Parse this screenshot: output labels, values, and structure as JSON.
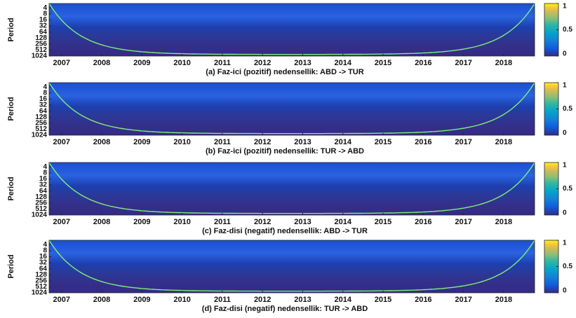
{
  "chart_data": [
    {
      "type": "heatmap",
      "title": "(a)  Faz-ici (pozitif) nedensellik: ABD -> TUR",
      "ylabel": "Period",
      "xlim": [
        2006.69,
        2018.77
      ],
      "xticks": [
        2007,
        2008,
        2009,
        2010,
        2011,
        2012,
        2013,
        2014,
        2015,
        2016,
        2017,
        2018
      ],
      "ylim": [
        2.4,
        1024
      ],
      "yscale": "log",
      "yticks": [
        4,
        8,
        16,
        32,
        64,
        128,
        256,
        512,
        1024
      ],
      "clim": [
        0,
        1
      ],
      "cticks": [
        0,
        0.5,
        1
      ]
    },
    {
      "type": "heatmap",
      "title": "(b) Faz-ici (pozitif) nedensellik: TUR -> ABD",
      "ylabel": "Period",
      "xlim": [
        2006.69,
        2018.77
      ],
      "xticks": [
        2007,
        2008,
        2009,
        2010,
        2011,
        2012,
        2013,
        2014,
        2015,
        2016,
        2017,
        2018
      ],
      "ylim": [
        2.4,
        1024
      ],
      "yscale": "log",
      "yticks": [
        4,
        8,
        16,
        32,
        64,
        128,
        256,
        512,
        1024
      ],
      "clim": [
        0,
        1
      ],
      "cticks": [
        0,
        0.5,
        1
      ]
    },
    {
      "type": "heatmap",
      "title": "(c)  Faz-disi (negatif) nedensellik: ABD -> TUR",
      "ylabel": "Period",
      "xlim": [
        2006.69,
        2018.77
      ],
      "xticks": [
        2007,
        2008,
        2009,
        2010,
        2011,
        2012,
        2013,
        2014,
        2015,
        2016,
        2017,
        2018
      ],
      "ylim": [
        2.4,
        1024
      ],
      "yscale": "log",
      "yticks": [
        4,
        8,
        16,
        32,
        64,
        128,
        256,
        512,
        1024
      ],
      "clim": [
        0,
        1
      ],
      "cticks": [
        0,
        0.5,
        1
      ]
    },
    {
      "type": "heatmap",
      "title": "(d) Faz-disi (negatif) nedensellik: TUR -> ABD",
      "ylabel": "Period",
      "xlim": [
        2006.69,
        2018.77
      ],
      "xticks": [
        2007,
        2008,
        2009,
        2010,
        2011,
        2012,
        2013,
        2014,
        2015,
        2016,
        2017,
        2018
      ],
      "ylim": [
        2.4,
        1024
      ],
      "yscale": "log",
      "yticks": [
        4,
        8,
        16,
        32,
        64,
        128,
        256,
        512,
        1024
      ],
      "clim": [
        0,
        1
      ],
      "cticks": [
        0,
        0.5,
        1
      ]
    }
  ]
}
